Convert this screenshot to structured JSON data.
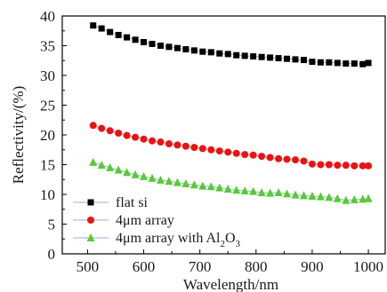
{
  "chart_data": {
    "type": "scatter",
    "xlabel": "Wavelength/nm",
    "ylabel": "Reflectivity/(%)",
    "xlim": [
      455,
      1030
    ],
    "ylim": [
      0,
      40
    ],
    "xticks": [
      500,
      600,
      700,
      800,
      900,
      1000
    ],
    "yticks": [
      0,
      5,
      10,
      15,
      20,
      25,
      30,
      35,
      40
    ],
    "legend_position": "bottom-left",
    "series": [
      {
        "name": "flat si",
        "marker": "square",
        "color": "#000000",
        "line_color": "#9fa8d8",
        "x": [
          510,
          525,
          540,
          555,
          570,
          585,
          600,
          615,
          630,
          645,
          660,
          675,
          690,
          705,
          720,
          735,
          750,
          765,
          780,
          795,
          810,
          825,
          840,
          855,
          870,
          885,
          900,
          915,
          930,
          945,
          960,
          975,
          990,
          1000
        ],
        "y": [
          38.4,
          37.9,
          37.3,
          36.8,
          36.4,
          36.0,
          35.6,
          35.3,
          35.0,
          34.8,
          34.6,
          34.4,
          34.2,
          34.0,
          33.9,
          33.7,
          33.6,
          33.4,
          33.3,
          33.2,
          33.1,
          33.0,
          32.9,
          32.8,
          32.7,
          32.6,
          32.3,
          32.2,
          32.2,
          32.1,
          32.0,
          32.0,
          31.9,
          32.1
        ]
      },
      {
        "name": "4μm array",
        "marker": "circle",
        "color": "#ee1111",
        "line_color": "#9fa8d8",
        "x": [
          510,
          525,
          540,
          555,
          570,
          585,
          600,
          615,
          630,
          645,
          660,
          675,
          690,
          705,
          720,
          735,
          750,
          765,
          780,
          795,
          810,
          825,
          840,
          855,
          870,
          885,
          900,
          915,
          930,
          945,
          960,
          975,
          990,
          1000
        ],
        "y": [
          21.6,
          21.1,
          20.7,
          20.3,
          19.9,
          19.6,
          19.3,
          19.0,
          18.8,
          18.5,
          18.3,
          18.1,
          17.9,
          17.7,
          17.5,
          17.3,
          17.1,
          16.9,
          16.7,
          16.6,
          16.4,
          16.2,
          16.0,
          15.9,
          15.8,
          15.6,
          15.1,
          15.0,
          15.0,
          14.9,
          14.9,
          14.8,
          14.8,
          14.8
        ]
      },
      {
        "name": "4μm array with Al2O3",
        "marker": "triangle",
        "color": "#55cc33",
        "line_color": "#9fa8d8",
        "x": [
          510,
          525,
          540,
          555,
          570,
          585,
          600,
          615,
          630,
          645,
          660,
          675,
          690,
          705,
          720,
          735,
          750,
          765,
          780,
          795,
          810,
          825,
          840,
          855,
          870,
          885,
          900,
          915,
          930,
          945,
          960,
          975,
          990,
          1000
        ],
        "y": [
          15.4,
          14.9,
          14.5,
          14.1,
          13.7,
          13.3,
          13.0,
          12.7,
          12.4,
          12.2,
          12.0,
          11.8,
          11.6,
          11.4,
          11.3,
          11.1,
          10.9,
          10.7,
          10.6,
          10.5,
          10.3,
          10.2,
          10.3,
          10.1,
          9.9,
          9.8,
          9.7,
          9.6,
          9.5,
          9.3,
          9.0,
          9.1,
          9.2,
          9.3
        ]
      }
    ]
  },
  "legend": {
    "items": [
      {
        "main": "flat si",
        "sub": "",
        "tail": "",
        "sub2": ""
      },
      {
        "main": "4μm array",
        "sub": "",
        "tail": "",
        "sub2": ""
      },
      {
        "main": "4μm array with Al",
        "sub": "2",
        "tail": "O",
        "sub2": "3"
      }
    ]
  }
}
